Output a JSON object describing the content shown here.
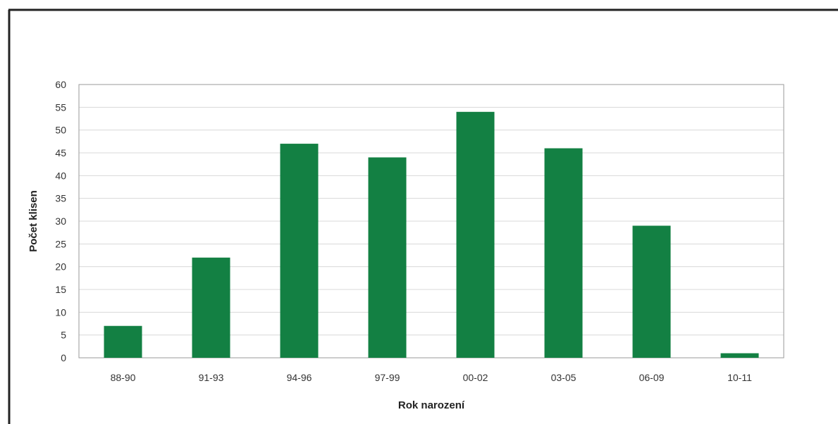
{
  "chart_data": {
    "type": "bar",
    "categories": [
      "88-90",
      "91-93",
      "94-96",
      "97-99",
      "00-02",
      "03-05",
      "06-09",
      "10-11"
    ],
    "values": [
      7,
      22,
      47,
      44,
      54,
      46,
      29,
      1
    ],
    "title": "",
    "xlabel": "Rok narození",
    "ylabel": "Počet klisen",
    "ylim": [
      0,
      60
    ],
    "yticks": [
      0,
      5,
      10,
      15,
      20,
      25,
      30,
      35,
      40,
      45,
      50,
      55,
      60
    ],
    "grid": true,
    "legend": "none",
    "colors": {
      "bar": "#138043",
      "grid": "#d8d8d8",
      "plot_border": "#9a9a9a",
      "frame_border": "#222222"
    }
  }
}
